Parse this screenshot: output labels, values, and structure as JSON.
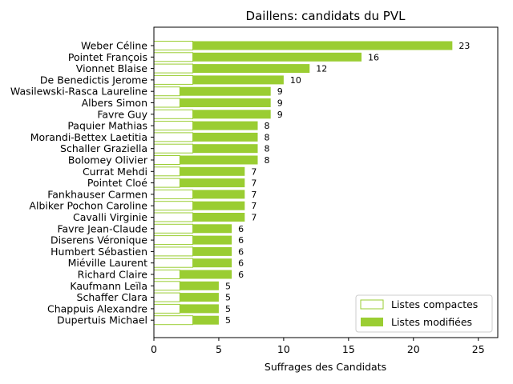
{
  "colors": {
    "compact_fill": "#ffffff",
    "compact_stroke": "#9acd32",
    "modified_fill": "#9acd32",
    "axis": "#000000"
  },
  "chart_data": {
    "type": "bar",
    "orientation": "horizontal",
    "stacked": true,
    "title": "Daillens: candidats du PVL",
    "xlabel": "Suffrages des Candidats",
    "ylabel": "",
    "xlim": [
      0,
      26.5
    ],
    "xticks": [
      0,
      5,
      10,
      15,
      20,
      25
    ],
    "grid": false,
    "legend_position": "bottom-right",
    "categories": [
      "Weber Céline",
      "Pointet François",
      "Vionnet Blaise",
      "De Benedictis Jerome",
      "Wasilewski-Rasca Laureline",
      "Albers Simon",
      "Favre Guy",
      "Paquier Mathias",
      "Morandi-Bettex Laetitia",
      "Schaller Graziella",
      "Bolomey Olivier",
      "Currat Mehdi",
      "Pointet Cloé",
      "Fankhauser Carmen",
      "Albiker Pochon Caroline",
      "Cavalli Virginie",
      "Favre Jean-Claude",
      "Diserens Véronique",
      "Humbert Sébastien",
      "Miéville Laurent",
      "Richard Claire",
      "Kaufmann Leïla",
      "Schaffer Clara",
      "Chappuis Alexandre",
      "Dupertuis Michael"
    ],
    "series": [
      {
        "name": "Listes compactes",
        "values": [
          3,
          3,
          3,
          3,
          2,
          2,
          3,
          3,
          3,
          3,
          2,
          2,
          2,
          3,
          3,
          3,
          3,
          3,
          3,
          3,
          2,
          2,
          2,
          2,
          3
        ]
      },
      {
        "name": "Listes modifiées",
        "values": [
          20,
          13,
          9,
          7,
          7,
          7,
          6,
          5,
          5,
          5,
          6,
          5,
          5,
          4,
          4,
          4,
          3,
          3,
          3,
          3,
          4,
          3,
          3,
          3,
          2
        ]
      }
    ],
    "totals": [
      23,
      16,
      12,
      10,
      9,
      9,
      9,
      8,
      8,
      8,
      8,
      7,
      7,
      7,
      7,
      7,
      6,
      6,
      6,
      6,
      6,
      5,
      5,
      5,
      5
    ]
  }
}
